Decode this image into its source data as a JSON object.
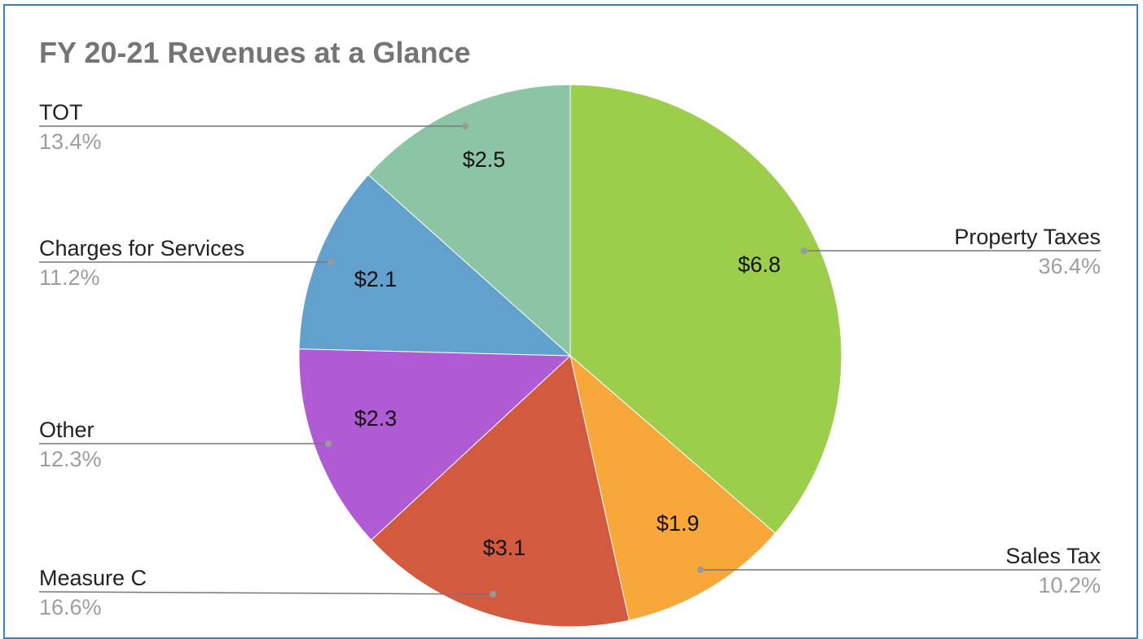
{
  "chart_data": {
    "type": "pie",
    "title": "FY 20-21 Revenues at a Glance",
    "slices": [
      {
        "label": "Property Taxes",
        "value": 6.8,
        "value_label": "$6.8",
        "percent_label": "36.4%",
        "color": "#9ccd4b"
      },
      {
        "label": "Sales Tax",
        "value": 1.9,
        "value_label": "$1.9",
        "percent_label": "10.2%",
        "color": "#f8a73b"
      },
      {
        "label": "Measure C",
        "value": 3.1,
        "value_label": "$3.1",
        "percent_label": "16.6%",
        "color": "#d25a3f"
      },
      {
        "label": "Other",
        "value": 2.3,
        "value_label": "$2.3",
        "percent_label": "12.3%",
        "color": "#b05ad3"
      },
      {
        "label": "Charges for Services",
        "value": 2.1,
        "value_label": "$2.1",
        "percent_label": "11.2%",
        "color": "#62a0cd"
      },
      {
        "label": "TOT",
        "value": 2.5,
        "value_label": "$2.5",
        "percent_label": "13.4%",
        "color": "#8cc4a6"
      }
    ],
    "start_angle": "12 o'clock",
    "direction": "clockwise",
    "legend": "leader lines to side labels"
  }
}
